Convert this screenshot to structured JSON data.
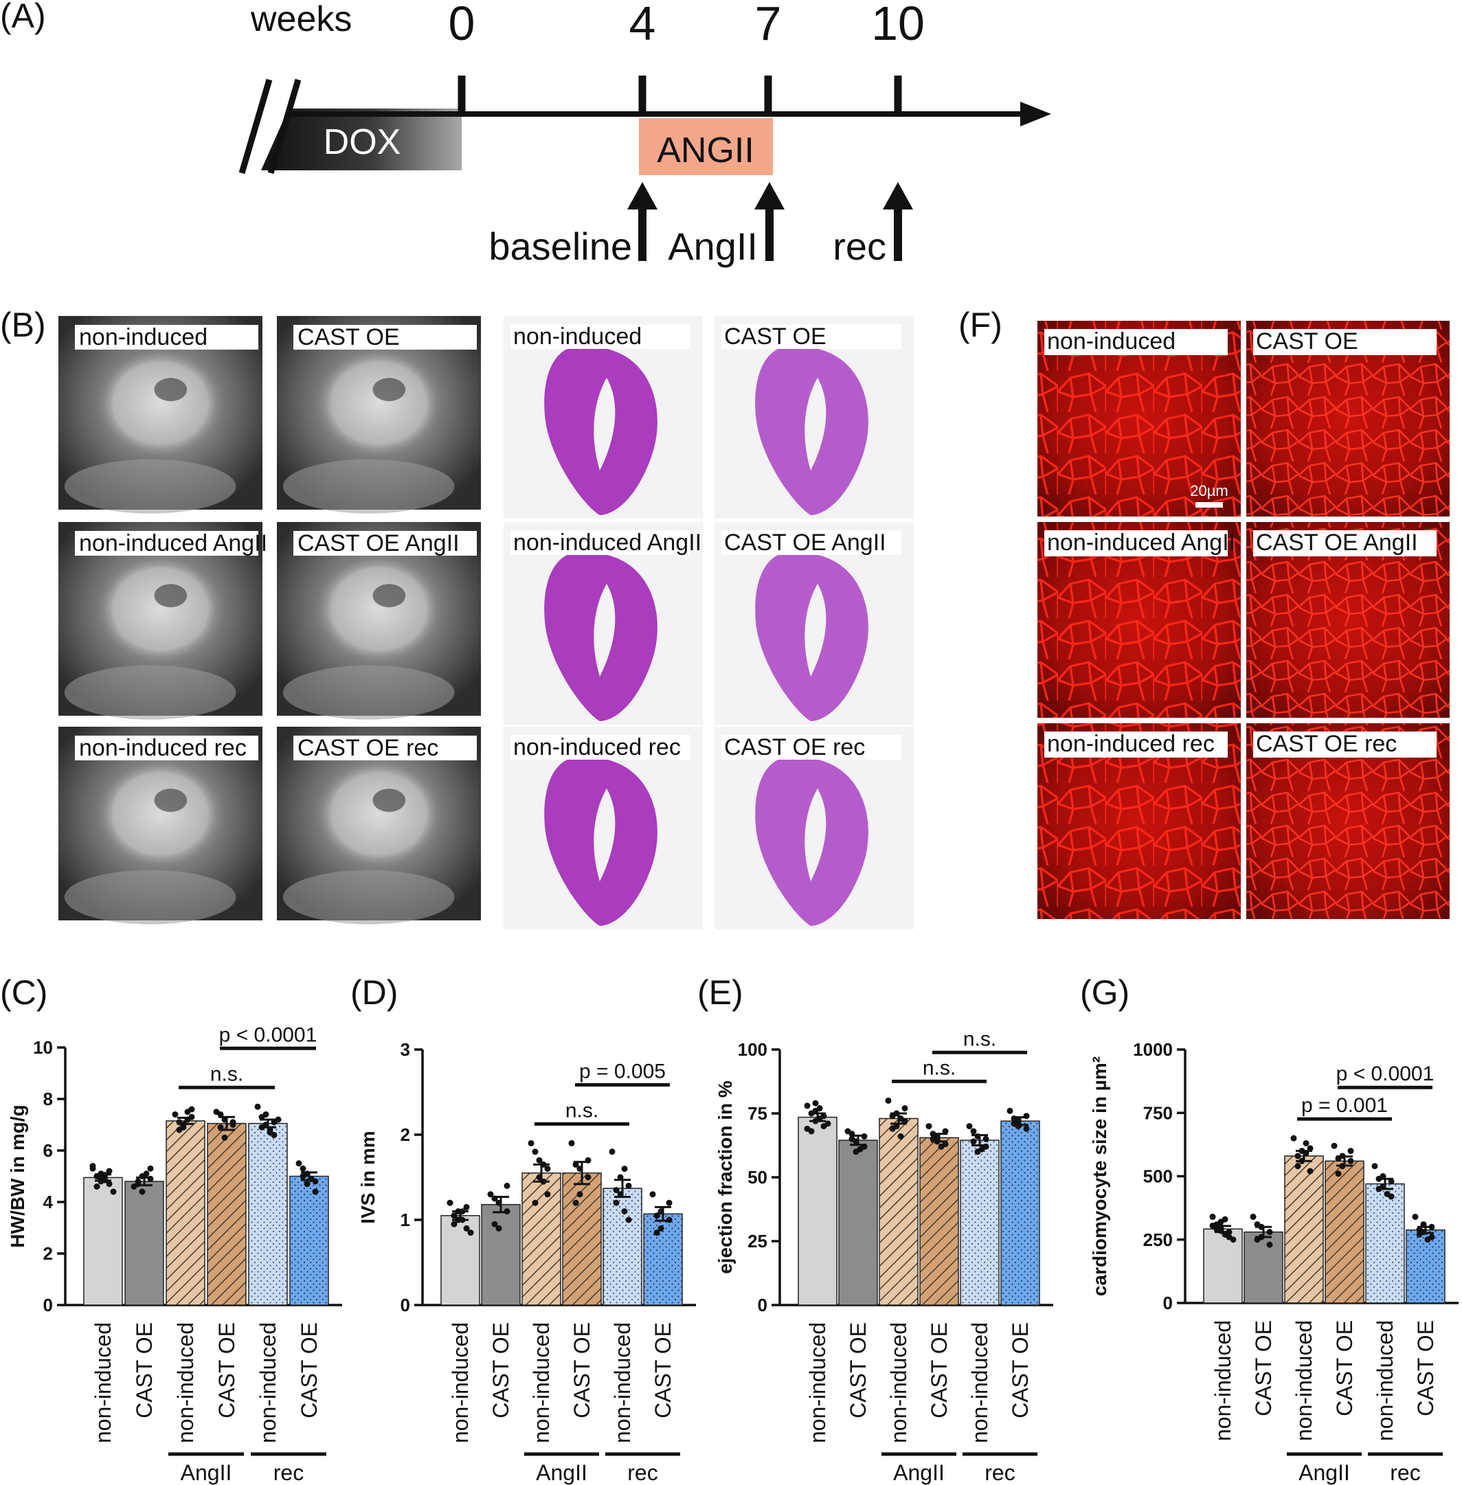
{
  "panel_labels": {
    "A": "(A)",
    "B": "(B)",
    "C": "(C)",
    "D": "(D)",
    "E": "(E)",
    "F": "(F)",
    "G": "(G)"
  },
  "timeline": {
    "weeks_label": "weeks",
    "ticks": [
      "0",
      "4",
      "7",
      "10"
    ],
    "dox_label": "DOX",
    "angii_label": "ANGII",
    "arrows": [
      "baseline",
      "AngII",
      "rec"
    ]
  },
  "panel_b": {
    "mri_labels": [
      "non-induced",
      "CAST OE",
      "non-induced AngII",
      "CAST OE AngII",
      "non-induced rec",
      "CAST OE rec"
    ],
    "histo_labels": [
      "non-induced",
      "CAST OE",
      "non-induced AngII",
      "CAST OE AngII",
      "non-induced rec",
      "CAST OE rec"
    ]
  },
  "panel_f": {
    "labels": [
      "non-induced",
      "CAST OE",
      "non-induced AngII",
      "CAST OE AngII",
      "non-induced rec",
      "CAST OE rec"
    ],
    "scale_bar": "20µm"
  },
  "colors": {
    "light_grey": "#d4d4d4",
    "dark_grey": "#8c8c8f",
    "angii_tan": "#e6c6a4",
    "angii_brown": "#d2a275",
    "rec_light_blue": "#c9dcf3",
    "rec_blue": "#6fa8ea",
    "dox_dark": "#2a2a2a",
    "angii_box": "#f2a78a",
    "fluor_red": "#ff1a10"
  },
  "chart_data": [
    {
      "id": "C",
      "type": "bar",
      "categories": [
        "non-induced",
        "CAST OE",
        "non-induced",
        "CAST OE",
        "non-induced",
        "CAST OE"
      ],
      "groups": [
        {
          "label": "AngII",
          "members": [
            2,
            3
          ]
        },
        {
          "label": "rec",
          "members": [
            4,
            5
          ]
        }
      ],
      "values": [
        4.95,
        4.8,
        7.15,
        7.05,
        7.05,
        5.0
      ],
      "errors": [
        0.12,
        0.15,
        0.12,
        0.25,
        0.15,
        0.15
      ],
      "points": [
        [
          5.3,
          5.1,
          4.9,
          4.7,
          5.2,
          4.6,
          5.0,
          4.85,
          5.05,
          4.4,
          5.4,
          4.8
        ],
        [
          4.6,
          5.0,
          4.4,
          5.3,
          4.9,
          4.7,
          4.8,
          5.1
        ],
        [
          7.4,
          7.0,
          6.9,
          7.3,
          7.6,
          7.1,
          6.8,
          7.2,
          7.5
        ],
        [
          7.5,
          7.2,
          6.5,
          7.0,
          7.1,
          6.9,
          7.4
        ],
        [
          7.7,
          7.4,
          7.0,
          6.6,
          7.1,
          6.9,
          7.3,
          6.8,
          6.7,
          7.2
        ],
        [
          5.5,
          4.7,
          5.1,
          4.8,
          4.4,
          5.3,
          5.0,
          4.9
        ]
      ],
      "ylabel": "HW/BW in mg/g",
      "ylim": [
        0,
        10
      ],
      "yticks": [
        0,
        2,
        4,
        6,
        8,
        10
      ],
      "annotations": [
        {
          "text": "n.s.",
          "from": 2,
          "to": 4
        },
        {
          "text": "p < 0.0001",
          "from": 3,
          "to": 5
        }
      ]
    },
    {
      "id": "D",
      "type": "bar",
      "categories": [
        "non-induced",
        "CAST OE",
        "non-induced",
        "CAST OE",
        "non-induced",
        "CAST OE"
      ],
      "groups": [
        {
          "label": "AngII",
          "members": [
            2,
            3
          ]
        },
        {
          "label": "rec",
          "members": [
            4,
            5
          ]
        }
      ],
      "values": [
        1.05,
        1.18,
        1.55,
        1.55,
        1.37,
        1.07
      ],
      "errors": [
        0.05,
        0.09,
        0.1,
        0.13,
        0.1,
        0.08
      ],
      "points": [
        [
          1.2,
          1.1,
          1.0,
          0.9,
          1.15,
          0.95,
          1.05,
          1.0,
          1.1,
          0.85,
          1.2,
          1.0
        ],
        [
          1.3,
          1.2,
          0.9,
          1.4,
          1.1,
          1.25,
          0.95
        ],
        [
          1.9,
          1.7,
          1.5,
          1.3,
          1.6,
          1.8,
          1.2,
          1.45,
          1.65
        ],
        [
          1.9,
          1.6,
          1.3,
          1.5,
          1.7,
          1.2,
          1.65
        ],
        [
          1.8,
          1.5,
          1.3,
          1.0,
          1.4,
          1.2,
          1.35,
          1.1,
          1.6
        ],
        [
          1.3,
          1.1,
          0.9,
          1.2,
          1.0,
          0.85,
          1.05
        ]
      ],
      "ylabel": "IVS in mm",
      "ylim": [
        0,
        3
      ],
      "yticks": [
        0,
        1,
        2,
        3
      ],
      "annotations": [
        {
          "text": "n.s.",
          "from": 2,
          "to": 4
        },
        {
          "text": "p = 0.005",
          "from": 3,
          "to": 5
        }
      ]
    },
    {
      "id": "E",
      "type": "bar",
      "categories": [
        "non-induced",
        "CAST OE",
        "non-induced",
        "CAST OE",
        "non-induced",
        "CAST OE"
      ],
      "groups": [
        {
          "label": "AngII",
          "members": [
            2,
            3
          ]
        },
        {
          "label": "rec",
          "members": [
            4,
            5
          ]
        }
      ],
      "values": [
        73.5,
        64.5,
        73,
        65.5,
        64.5,
        72
      ],
      "errors": [
        1.5,
        1.8,
        2.0,
        1.5,
        2.0,
        1.5
      ],
      "points": [
        [
          78,
          76,
          72,
          70,
          74,
          68,
          75,
          73,
          77,
          71,
          69,
          79
        ],
        [
          68,
          64,
          60,
          66,
          62,
          67,
          65,
          61
        ],
        [
          80,
          75,
          70,
          72,
          77,
          69,
          74,
          73,
          66
        ],
        [
          70,
          66,
          64,
          68,
          63,
          67,
          65,
          62
        ],
        [
          70,
          66,
          60,
          65,
          62,
          68,
          64,
          61
        ],
        [
          76,
          72,
          70,
          74,
          69,
          71,
          73
        ]
      ],
      "ylabel": "ejection fraction in %",
      "ylim": [
        0,
        100
      ],
      "yticks": [
        0,
        25,
        50,
        75,
        100
      ],
      "annotations": [
        {
          "text": "n.s.",
          "from": 2,
          "to": 4
        },
        {
          "text": "n.s.",
          "from": 3,
          "to": 5
        }
      ]
    },
    {
      "id": "G",
      "type": "bar",
      "categories": [
        "non-induced",
        "CAST OE",
        "non-induced",
        "CAST OE",
        "non-induced",
        "CAST OE"
      ],
      "groups": [
        {
          "label": "AngII",
          "members": [
            2,
            3
          ]
        },
        {
          "label": "rec",
          "members": [
            4,
            5
          ]
        }
      ],
      "values": [
        292,
        280,
        580,
        560,
        470,
        288
      ],
      "errors": [
        12,
        20,
        20,
        18,
        20,
        12
      ],
      "points": [
        [
          340,
          320,
          300,
          280,
          260,
          310,
          290,
          270,
          330,
          250,
          305,
          285
        ],
        [
          340,
          300,
          260,
          230,
          280,
          310,
          250
        ],
        [
          650,
          600,
          560,
          520,
          610,
          580,
          540,
          590,
          630
        ],
        [
          620,
          580,
          540,
          600,
          560,
          510,
          570
        ],
        [
          540,
          500,
          460,
          420,
          480,
          450,
          490,
          430
        ],
        [
          340,
          310,
          280,
          260,
          300,
          270,
          290,
          250
        ]
      ],
      "ylabel": "cardiomyocyte size in µm²",
      "ylim": [
        0,
        1000
      ],
      "yticks": [
        0,
        250,
        500,
        750,
        1000
      ],
      "annotations": [
        {
          "text": "p = 0.001",
          "from": 2,
          "to": 4
        },
        {
          "text": "p < 0.0001",
          "from": 3,
          "to": 5
        }
      ]
    }
  ]
}
